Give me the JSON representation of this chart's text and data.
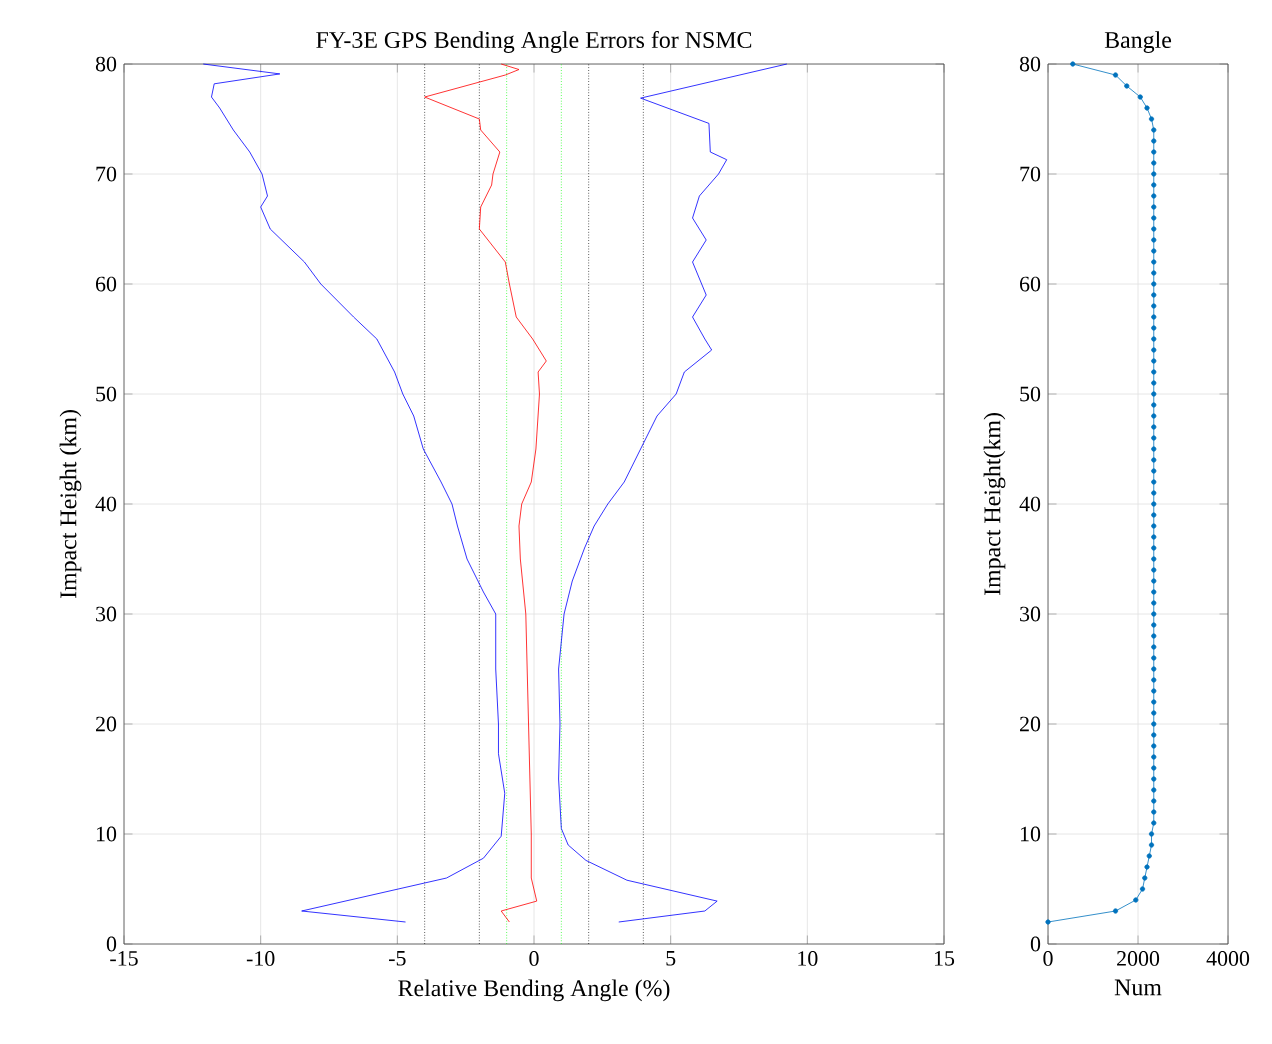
{
  "chart_data": [
    {
      "type": "line",
      "title": "FY-3E GPS Bending Angle Errors for NSMC",
      "xlabel": "Relative Bending Angle (%)",
      "ylabel": "Impact Height (km)",
      "xlim": [
        -15,
        15
      ],
      "ylim": [
        0,
        80
      ],
      "xticks": [
        -15,
        -10,
        -5,
        0,
        5,
        10,
        15
      ],
      "yticks": [
        0,
        10,
        20,
        30,
        40,
        50,
        60,
        70,
        80
      ],
      "grid": true,
      "series": [
        {
          "color": "#0000ff",
          "x": [
            -4.7,
            -8.5,
            -3.2,
            -1.85,
            -1.2,
            -1.07,
            -1.3,
            -1.3,
            -1.4,
            -1.4,
            -1.85,
            -2.45,
            -2.8,
            -3.0,
            -3.4,
            -4.05,
            -4.4,
            -4.8,
            -5.1,
            -5.75,
            -6.6,
            -7.8,
            -8.4,
            -9.65,
            -10.0,
            -9.75,
            -9.95,
            -10.4,
            -11.0,
            -11.5,
            -11.8,
            -11.7,
            -9.3,
            -12.1
          ],
          "values": [
            2,
            3,
            6,
            7.8,
            9.8,
            13.7,
            17.3,
            20,
            25,
            30,
            32,
            35,
            38,
            40,
            42,
            45,
            48,
            50,
            52,
            55,
            57,
            60,
            62,
            65,
            67,
            68,
            70,
            72,
            74,
            76,
            77,
            78.2,
            79.1,
            80
          ]
        },
        {
          "color": "#0000ff",
          "x": [
            3.1,
            6.25,
            6.7,
            3.4,
            1.9,
            1.25,
            1.0,
            0.9,
            0.95,
            0.9,
            1.1,
            1.4,
            1.85,
            2.2,
            2.7,
            3.3,
            3.9,
            4.5,
            5.2,
            5.5,
            6.5,
            6.25,
            5.8,
            6.3,
            5.8,
            6.3,
            5.8,
            6.05,
            6.75,
            7.05,
            6.45,
            6.4,
            3.9,
            9.25
          ],
          "values": [
            2,
            3,
            3.9,
            5.8,
            7.6,
            9,
            10.5,
            15,
            20,
            25,
            30,
            33,
            36,
            38,
            40,
            42,
            45,
            48,
            50,
            52,
            54,
            55,
            57,
            59,
            62,
            64,
            66,
            68,
            70,
            71.3,
            72,
            74.6,
            76.9,
            80
          ]
        },
        {
          "color": "#ff0000",
          "x": [
            -0.9,
            -1.2,
            0.1,
            -0.1,
            -0.1,
            -0.2,
            -0.3,
            -0.5,
            -0.55,
            -0.45,
            -0.1,
            0.07,
            0.2,
            0.15,
            0.45,
            -0.05,
            -0.65,
            -0.9,
            -1.05,
            -2.0,
            -1.95,
            -1.55,
            -1.5,
            -1.25,
            -1.95,
            -2.0,
            -4.0,
            -1.05,
            -0.55,
            -1.2
          ],
          "values": [
            2,
            3,
            3.9,
            6,
            10,
            20,
            30,
            35,
            38,
            40,
            42,
            45,
            50,
            52,
            53,
            55,
            57,
            60,
            62,
            65,
            67,
            69,
            70,
            72,
            74,
            75,
            77,
            79,
            79.5,
            80
          ]
        }
      ],
      "ref_lines": [
        {
          "axis": "x",
          "value": -4,
          "color": "#000000",
          "line_style": "dotted"
        },
        {
          "axis": "x",
          "value": -2,
          "color": "#000000",
          "line_style": "dotted"
        },
        {
          "axis": "x",
          "value": 2,
          "color": "#000000",
          "line_style": "dotted"
        },
        {
          "axis": "x",
          "value": 4,
          "color": "#000000",
          "line_style": "dotted"
        },
        {
          "axis": "x",
          "value": -1,
          "color": "#00ff00",
          "line_style": "dotted"
        },
        {
          "axis": "x",
          "value": 1,
          "color": "#00ff00",
          "line_style": "dotted"
        }
      ]
    },
    {
      "type": "line",
      "title": "Bangle",
      "xlabel": "Num",
      "ylabel": "Impact Height(km)",
      "xlim": [
        0,
        4000
      ],
      "ylim": [
        0,
        80
      ],
      "xticks": [
        0,
        2000,
        4000
      ],
      "yticks": [
        0,
        10,
        20,
        30,
        40,
        50,
        60,
        70,
        80
      ],
      "grid": true,
      "marker": "circle",
      "series": [
        {
          "color": "#0072bd",
          "x": [
            0,
            1500,
            1950,
            2100,
            2150,
            2200,
            2250,
            2300,
            2300,
            2350,
            2350,
            2350,
            2350,
            2350,
            2350,
            2350,
            2350,
            2350,
            2350,
            2350,
            2350,
            2350,
            2350,
            2350,
            2350,
            2350,
            2350,
            2350,
            2350,
            2350,
            2350,
            2350,
            2350,
            2350,
            2350,
            2350,
            2350,
            2350,
            2350,
            2350,
            2350,
            2350,
            2350,
            2350,
            2350,
            2350,
            2350,
            2350,
            2350,
            2350,
            2350,
            2350,
            2350,
            2350,
            2350,
            2350,
            2350,
            2350,
            2350,
            2350,
            2350,
            2350,
            2350,
            2350,
            2350,
            2350,
            2350,
            2350,
            2350,
            2350,
            2350,
            2350,
            2350,
            2300,
            2200,
            2050,
            1750,
            1500,
            550
          ],
          "values": [
            2,
            3,
            4,
            5,
            6,
            7,
            8,
            9,
            10,
            11,
            12,
            13,
            14,
            15,
            16,
            17,
            18,
            19,
            20,
            21,
            22,
            23,
            24,
            25,
            26,
            27,
            28,
            29,
            30,
            31,
            32,
            33,
            34,
            35,
            36,
            37,
            38,
            39,
            40,
            41,
            42,
            43,
            44,
            45,
            46,
            47,
            48,
            49,
            50,
            51,
            52,
            53,
            54,
            55,
            56,
            57,
            58,
            59,
            60,
            61,
            62,
            63,
            64,
            65,
            66,
            67,
            68,
            69,
            70,
            71,
            72,
            73,
            74,
            75,
            76,
            77,
            78,
            79,
            80
          ]
        }
      ]
    }
  ]
}
